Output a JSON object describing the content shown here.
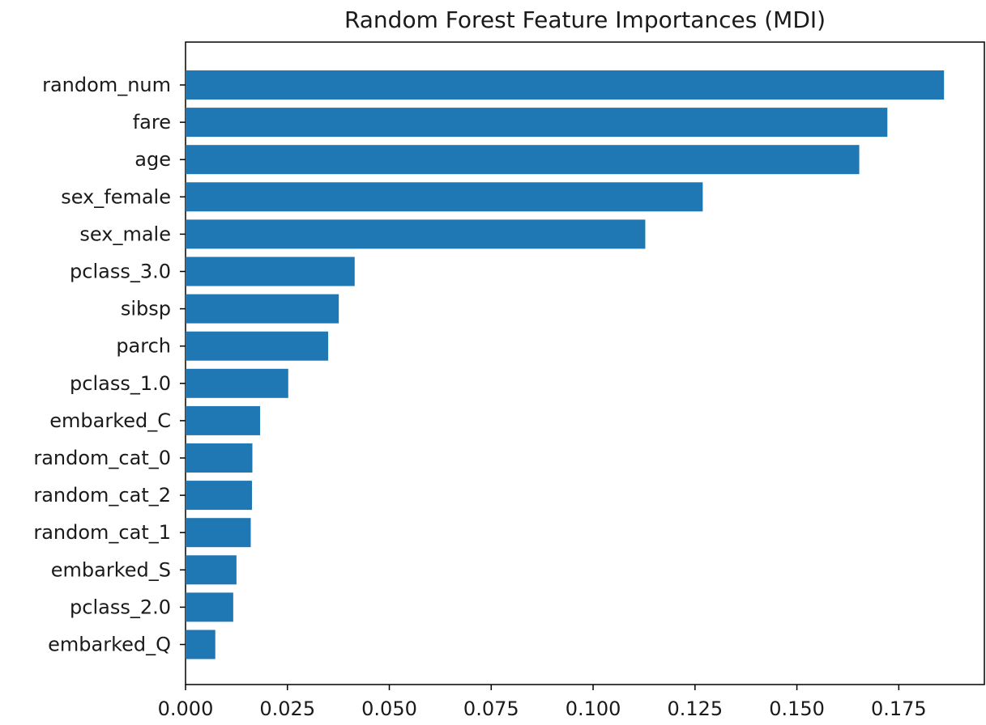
{
  "chart_data": {
    "type": "bar",
    "orientation": "horizontal",
    "title": "Random Forest Feature Importances (MDI)",
    "xlabel": "",
    "ylabel": "",
    "categories": [
      "random_num",
      "fare",
      "age",
      "sex_female",
      "sex_male",
      "pclass_3.0",
      "sibsp",
      "parch",
      "pclass_1.0",
      "embarked_C",
      "random_cat_0",
      "random_cat_2",
      "random_cat_1",
      "embarked_S",
      "pclass_2.0",
      "embarked_Q"
    ],
    "values": [
      0.1861,
      0.1722,
      0.1653,
      0.1269,
      0.1128,
      0.0415,
      0.0376,
      0.035,
      0.0252,
      0.0183,
      0.0164,
      0.0163,
      0.016,
      0.0125,
      0.0117,
      0.0073
    ],
    "xlim": [
      0,
      0.196
    ],
    "xticks": [
      "0.000",
      "0.025",
      "0.050",
      "0.075",
      "0.100",
      "0.125",
      "0.150",
      "0.175"
    ],
    "bar_color": "#1f77b4",
    "grid": false,
    "legend": "none"
  }
}
